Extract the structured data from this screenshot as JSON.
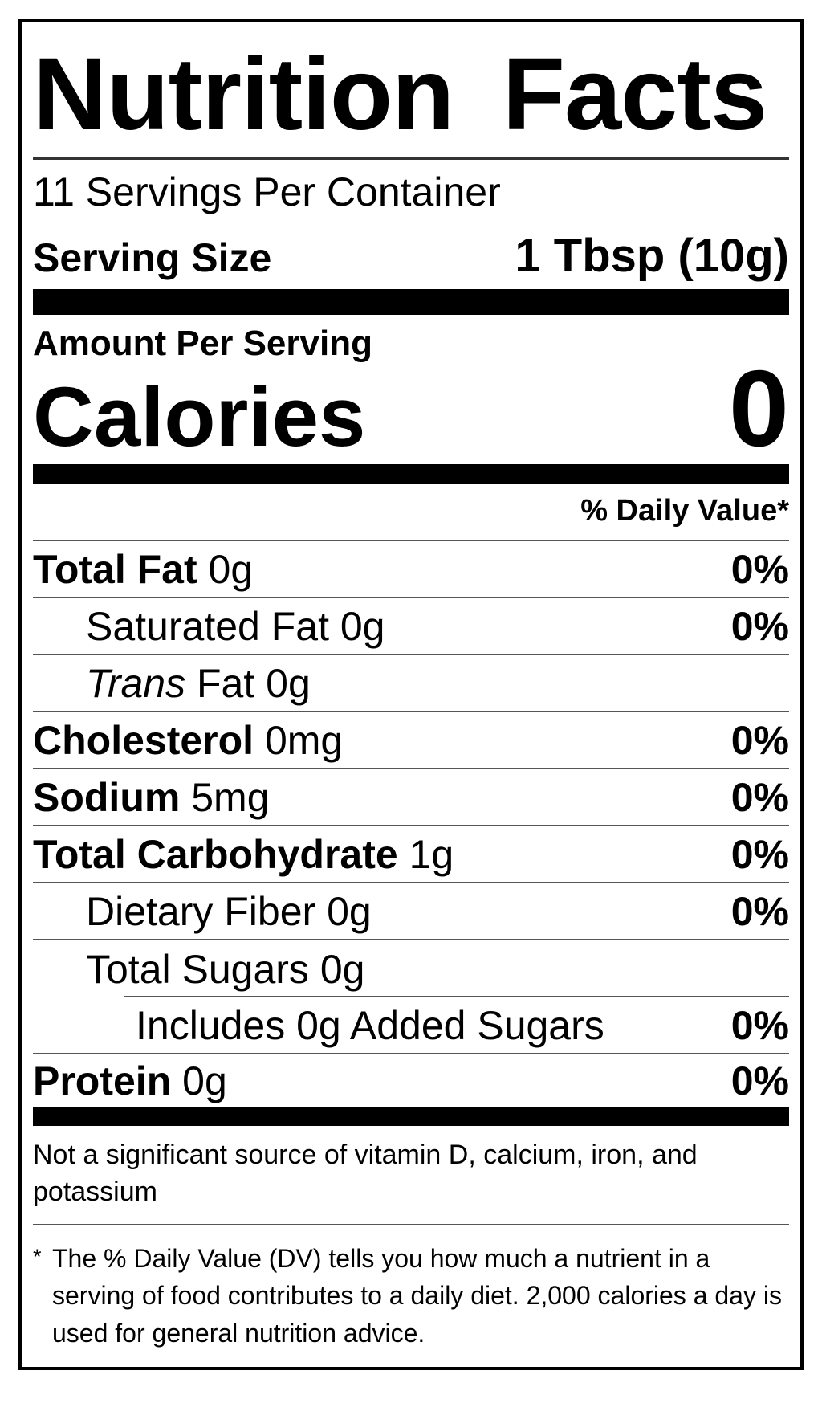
{
  "label": {
    "title": "Nutrition Facts",
    "servings_per_container": "11 Servings Per Container",
    "serving_size_label": "Serving Size",
    "serving_size_value": "1 Tbsp (10g)",
    "amount_per_serving_label": "Amount Per Serving",
    "calories_label": "Calories",
    "calories_value": "0",
    "daily_value_header": "% Daily Value*",
    "rows": [
      {
        "name": "Total Fat",
        "amount": "0g",
        "dv": "0%"
      },
      {
        "name": "Saturated Fat",
        "amount": "0g",
        "dv": "0%"
      },
      {
        "name_italic": "Trans",
        "name": "Fat",
        "amount": "0g",
        "dv": ""
      },
      {
        "name": "Cholesterol",
        "amount": "0mg",
        "dv": "0%"
      },
      {
        "name": "Sodium",
        "amount": "5mg",
        "dv": "0%"
      },
      {
        "name": "Total Carbohydrate",
        "amount": "1g",
        "dv": "0%"
      },
      {
        "name": "Dietary Fiber",
        "amount": "0g",
        "dv": "0%"
      },
      {
        "name": "Total Sugars",
        "amount": "0g",
        "dv": ""
      },
      {
        "name": "Includes 0g Added Sugars",
        "amount": "",
        "dv": "0%"
      },
      {
        "name": "Protein",
        "amount": "0g",
        "dv": "0%"
      }
    ],
    "insignificant_note": "Not a significant source of vitamin D, calcium, iron, and potassium",
    "footnote_marker": "*",
    "footnote": "The % Daily Value (DV) tells you how much a nutrient in a serving of food contributes to a daily diet. 2,000 calories a day is used for general nutrition advice."
  },
  "colors": {
    "text": "#000000",
    "background": "#ffffff",
    "bar": "#000000",
    "rule": "#555555"
  }
}
